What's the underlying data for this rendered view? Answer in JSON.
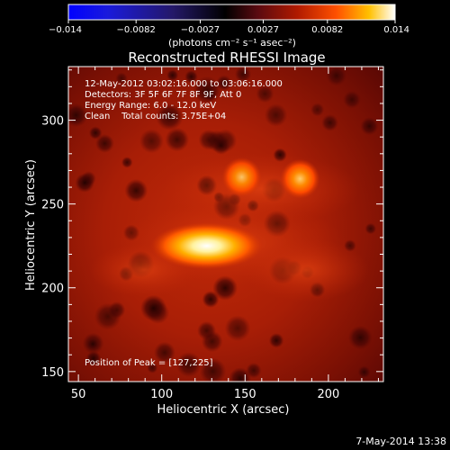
{
  "colorbar": {
    "tick_labels": [
      "−0.014",
      "−0.0082",
      "−0.0027",
      "0.0027",
      "0.0082",
      "0.014"
    ],
    "tick_values": [
      -0.014,
      -0.0082,
      -0.0027,
      0.0027,
      0.0082,
      0.014
    ],
    "range": [
      -0.014,
      0.014
    ],
    "unit_label": "(photons cm⁻² s⁻¹ asec⁻²)"
  },
  "title": "Reconstructed RHESSI Image",
  "info": {
    "line1": "12-May-2012 03:02:16.000 to 03:06:16.000",
    "line2": "Detectors: 3F 5F 6F 7F 8F 9F, Att 0",
    "line3": "Energy Range: 6.0 - 12.0 keV",
    "line4": "Clean    Total counts: 3.75E+04"
  },
  "peak_label": "Position of Peak = [127,225]",
  "xaxis": {
    "label": "Heliocentric X (arcsec)",
    "ticks": [
      50,
      100,
      150,
      200
    ],
    "range": [
      44,
      233
    ]
  },
  "yaxis": {
    "label": "Heliocentric Y (arcsec)",
    "ticks": [
      150,
      200,
      250,
      300
    ],
    "range": [
      144,
      332
    ]
  },
  "sources": [
    {
      "x": 127,
      "y": 225,
      "level": 1.0
    },
    {
      "x": 148,
      "y": 266,
      "level": 0.72
    },
    {
      "x": 183,
      "y": 265,
      "level": 0.78
    }
  ],
  "footer_date": "7-May-2014 13:38"
}
